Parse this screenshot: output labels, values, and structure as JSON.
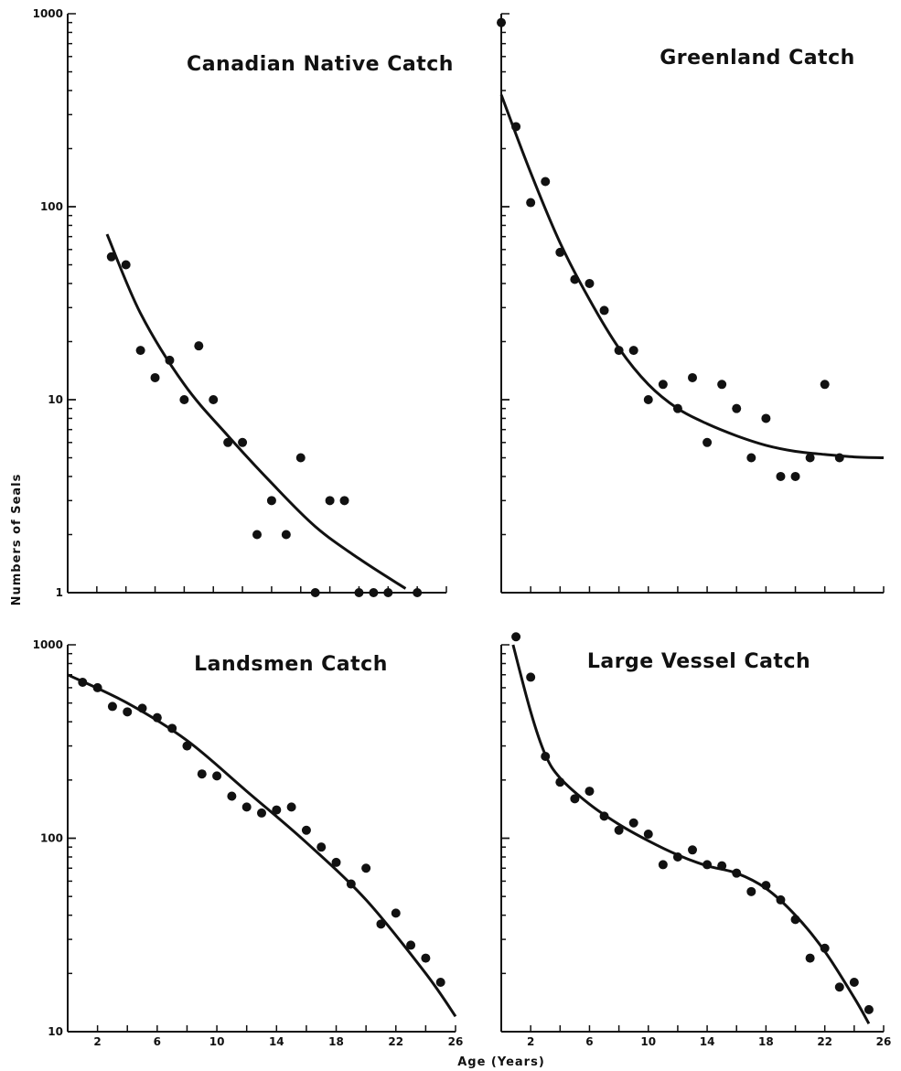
{
  "figure": {
    "ylabel": "Numbers of Seals",
    "xlabel": "Age (Years)",
    "ink_color": "#111111",
    "background": "#ffffff"
  },
  "chart_data": [
    {
      "type": "scatter",
      "title": "Canadian Native Catch",
      "xlabel": "",
      "ylabel": "Numbers of Seals",
      "yscale": "log",
      "ylim": [
        1,
        1000
      ],
      "xlim": [
        0,
        26
      ],
      "y_tick_labels": [
        "1000",
        "100",
        "10",
        "1"
      ],
      "x_tick_labels": [],
      "grid": false,
      "series": [
        {
          "kind": "points",
          "x": [
            3,
            4,
            5,
            6,
            7,
            8,
            9,
            10,
            11,
            12,
            13,
            14,
            15,
            16,
            17,
            18,
            19,
            20,
            21,
            22,
            24
          ],
          "y": [
            55,
            50,
            18,
            13,
            16,
            10,
            19,
            10,
            6,
            6,
            2,
            3,
            2,
            5,
            1,
            3,
            3,
            1,
            1,
            1,
            1
          ]
        },
        {
          "kind": "fitted-curve",
          "x": [
            2.7,
            5,
            8,
            11,
            14,
            17,
            20,
            23.2
          ],
          "y": [
            72,
            28,
            12,
            6.5,
            3.7,
            2.2,
            1.5,
            1.05
          ]
        }
      ]
    },
    {
      "type": "scatter",
      "title": "Greenland Catch",
      "xlabel": "",
      "ylabel": "",
      "yscale": "log",
      "ylim": [
        1,
        1000
      ],
      "xlim": [
        0,
        26
      ],
      "y_tick_labels": [],
      "x_tick_labels": [],
      "grid": false,
      "series": [
        {
          "kind": "points",
          "x": [
            0,
            1,
            2,
            3,
            4,
            5,
            6,
            7,
            8,
            9,
            10,
            11,
            12,
            13,
            14,
            15,
            16,
            17,
            18,
            19,
            20,
            21,
            22,
            23
          ],
          "y": [
            900,
            260,
            105,
            135,
            58,
            42,
            40,
            29,
            18,
            18,
            10,
            12,
            9,
            13,
            6,
            12,
            9,
            5,
            8,
            4,
            4,
            5,
            12,
            5
          ]
        },
        {
          "kind": "fitted-curve",
          "x": [
            0,
            2,
            4,
            6,
            8,
            10,
            12,
            14,
            16,
            18,
            20,
            22,
            24,
            26
          ],
          "y": [
            380,
            150,
            65,
            33,
            18.5,
            12,
            9,
            7.5,
            6.5,
            5.8,
            5.4,
            5.2,
            5.05,
            5
          ]
        }
      ]
    },
    {
      "type": "scatter",
      "title": "Landsmen Catch",
      "xlabel": "",
      "ylabel": "",
      "yscale": "log",
      "ylim": [
        10,
        1000
      ],
      "xlim": [
        0,
        26
      ],
      "y_tick_labels": [
        "1000",
        "100",
        "10"
      ],
      "x_tick_labels": [
        "2",
        "6",
        "10",
        "14",
        "18",
        "22",
        "26"
      ],
      "grid": false,
      "series": [
        {
          "kind": "points",
          "x": [
            1,
            2,
            3,
            4,
            5,
            6,
            7,
            8,
            9,
            10,
            11,
            12,
            13,
            14,
            15,
            16,
            17,
            18,
            19,
            20,
            21,
            22,
            23,
            24,
            25
          ],
          "y": [
            640,
            600,
            480,
            450,
            470,
            420,
            370,
            300,
            215,
            210,
            165,
            145,
            135,
            140,
            145,
            110,
            90,
            75,
            58,
            70,
            36,
            41,
            28,
            24,
            18
          ]
        },
        {
          "kind": "fitted-curve",
          "x": [
            0,
            4,
            8,
            12,
            16,
            20,
            24,
            26
          ],
          "y": [
            700,
            500,
            320,
            175,
            95,
            48,
            20,
            12
          ]
        }
      ]
    },
    {
      "type": "scatter",
      "title": "Large Vessel Catch",
      "xlabel": "Age (Years)",
      "ylabel": "",
      "yscale": "log",
      "ylim": [
        10,
        1000
      ],
      "xlim": [
        0,
        26
      ],
      "y_tick_labels": [],
      "x_tick_labels": [
        "2",
        "6",
        "10",
        "14",
        "18",
        "22",
        "26"
      ],
      "grid": false,
      "series": [
        {
          "kind": "points",
          "x": [
            1,
            2,
            3,
            4,
            5,
            6,
            7,
            8,
            9,
            10,
            11,
            12,
            13,
            14,
            15,
            16,
            17,
            18,
            19,
            20,
            21,
            22,
            23,
            24,
            25
          ],
          "y": [
            1100,
            680,
            265,
            195,
            160,
            175,
            130,
            110,
            120,
            105,
            73,
            80,
            87,
            73,
            72,
            66,
            53,
            57,
            48,
            38,
            24,
            27,
            17,
            18,
            13
          ]
        },
        {
          "kind": "fitted-curve",
          "x": [
            0.8,
            2,
            3,
            4,
            6,
            8,
            10,
            12,
            14,
            16,
            18,
            20,
            22,
            24,
            25
          ],
          "y": [
            1000,
            450,
            270,
            205,
            150,
            118,
            97,
            82,
            72,
            66,
            55,
            40,
            26,
            15,
            11
          ]
        }
      ]
    }
  ]
}
